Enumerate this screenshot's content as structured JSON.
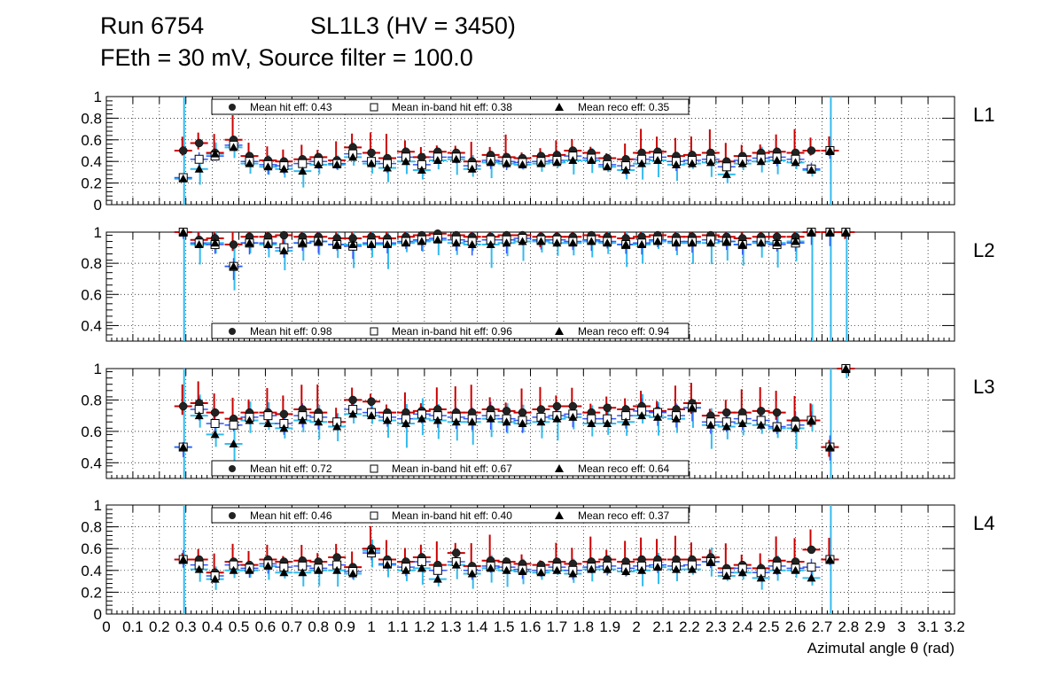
{
  "header": {
    "run": "Run 6754",
    "chamber": "SL1L3 (HV = 3450)",
    "settings": "FEth = 30 mV, Source filter = 100.0"
  },
  "colors": {
    "hit": "#cc0000",
    "inband": "#3355ff",
    "reco": "#33bbee",
    "purple": "#8800aa",
    "grid": "#000000"
  },
  "chart_data": {
    "type": "scatter",
    "xlabel": "Azimutal angle θ (rad)",
    "xlim": [
      0,
      3.2
    ],
    "x_ticks": [
      {
        "v": 0,
        "label": "0"
      },
      {
        "v": 0.1,
        "label": "0.1"
      },
      {
        "v": 0.2,
        "label": "0.2"
      },
      {
        "v": 0.3,
        "label": "0.3"
      },
      {
        "v": 0.4,
        "label": "0.4"
      },
      {
        "v": 0.5,
        "label": "0.5"
      },
      {
        "v": 0.6,
        "label": "0.6"
      },
      {
        "v": 0.7,
        "label": "0.7"
      },
      {
        "v": 0.8,
        "label": "0.8"
      },
      {
        "v": 0.9,
        "label": "0.9"
      },
      {
        "v": 1.0,
        "label": "1"
      },
      {
        "v": 1.1,
        "label": "1.1"
      },
      {
        "v": 1.2,
        "label": "1.2"
      },
      {
        "v": 1.3,
        "label": "1.3"
      },
      {
        "v": 1.4,
        "label": "1.4"
      },
      {
        "v": 1.5,
        "label": "1.5"
      },
      {
        "v": 1.6,
        "label": "1.6"
      },
      {
        "v": 1.7,
        "label": "1.7"
      },
      {
        "v": 1.8,
        "label": "1.8"
      },
      {
        "v": 1.9,
        "label": "1.9"
      },
      {
        "v": 2.0,
        "label": "2"
      },
      {
        "v": 2.1,
        "label": "2.1"
      },
      {
        "v": 2.2,
        "label": "2.2"
      },
      {
        "v": 2.3,
        "label": "2.3"
      },
      {
        "v": 2.4,
        "label": "2.4"
      },
      {
        "v": 2.5,
        "label": "2.5"
      },
      {
        "v": 2.6,
        "label": "2.6"
      },
      {
        "v": 2.7,
        "label": "2.7"
      },
      {
        "v": 2.8,
        "label": "2.8"
      },
      {
        "v": 2.9,
        "label": "2.9"
      },
      {
        "v": 3.0,
        "label": "3"
      },
      {
        "v": 3.1,
        "label": "3.1"
      },
      {
        "v": 3.2,
        "label": "3.2"
      }
    ],
    "x": [
      0.29,
      0.35,
      0.41,
      0.48,
      0.54,
      0.61,
      0.67,
      0.74,
      0.8,
      0.87,
      0.93,
      1.0,
      1.06,
      1.13,
      1.19,
      1.25,
      1.32,
      1.38,
      1.45,
      1.51,
      1.57,
      1.64,
      1.7,
      1.76,
      1.83,
      1.89,
      1.96,
      2.02,
      2.08,
      2.15,
      2.21,
      2.28,
      2.34,
      2.4,
      2.47,
      2.53,
      2.6,
      2.66,
      2.73,
      2.79
    ],
    "legend_labels": {
      "hit": "Mean hit  eff: ",
      "inband": "Mean in-band hit eff: ",
      "reco": "Mean reco eff: "
    },
    "panels": [
      {
        "name": "L1",
        "ylim": [
          0,
          1
        ],
        "y_ticks": [
          {
            "v": 0,
            "label": "0"
          },
          {
            "v": 0.2,
            "label": "0.2"
          },
          {
            "v": 0.4,
            "label": "0.4"
          },
          {
            "v": 0.6,
            "label": "0.6"
          },
          {
            "v": 0.8,
            "label": "0.8"
          },
          {
            "v": 1,
            "label": "1"
          }
        ],
        "legend_pos": "top",
        "means": {
          "hit": "0.43",
          "inband": "0.38",
          "reco": "0.35"
        },
        "hit": [
          0.5,
          0.57,
          0.48,
          0.6,
          0.45,
          0.41,
          0.4,
          0.42,
          0.44,
          0.41,
          0.53,
          0.48,
          0.43,
          0.49,
          0.44,
          0.49,
          0.48,
          0.4,
          0.46,
          0.44,
          0.43,
          0.45,
          0.46,
          0.5,
          0.48,
          0.43,
          0.42,
          0.48,
          0.49,
          0.45,
          0.46,
          0.48,
          0.4,
          0.45,
          0.48,
          0.49,
          0.48,
          0.5,
          0.5,
          null
        ],
        "inband": [
          0.25,
          0.42,
          0.45,
          0.55,
          0.4,
          0.37,
          0.36,
          0.38,
          0.4,
          0.38,
          0.47,
          0.4,
          0.38,
          0.44,
          0.37,
          0.44,
          0.44,
          0.36,
          0.41,
          0.4,
          0.39,
          0.4,
          0.41,
          0.45,
          0.43,
          0.37,
          0.36,
          0.42,
          0.44,
          0.4,
          0.41,
          0.42,
          0.35,
          0.41,
          0.43,
          0.44,
          0.42,
          0.33,
          0.5,
          null
        ],
        "reco": [
          0.24,
          0.33,
          0.47,
          0.53,
          0.38,
          0.35,
          0.33,
          0.31,
          0.37,
          0.37,
          0.44,
          0.38,
          0.34,
          0.4,
          0.32,
          0.41,
          0.42,
          0.33,
          0.39,
          0.38,
          0.37,
          0.38,
          0.39,
          0.41,
          0.41,
          0.35,
          0.32,
          0.38,
          0.41,
          0.37,
          0.38,
          0.39,
          0.28,
          0.38,
          0.4,
          0.41,
          0.39,
          0.32,
          0.5,
          null
        ]
      },
      {
        "name": "L2",
        "ylim": [
          0.3,
          1.0
        ],
        "y_ticks": [
          {
            "v": 0.4,
            "label": "0.4"
          },
          {
            "v": 0.6,
            "label": "0.6"
          },
          {
            "v": 0.8,
            "label": "0.8"
          },
          {
            "v": 1,
            "label": "1"
          }
        ],
        "legend_pos": "bottom",
        "means": {
          "hit": "0.98",
          "inband": "0.96",
          "reco": "0.94"
        },
        "hit": [
          1.0,
          0.95,
          0.96,
          0.92,
          0.97,
          0.97,
          0.98,
          0.97,
          0.97,
          0.96,
          0.96,
          0.97,
          0.96,
          0.97,
          0.98,
          0.99,
          0.98,
          0.97,
          0.97,
          0.98,
          0.98,
          0.97,
          0.97,
          0.97,
          0.98,
          0.97,
          0.96,
          0.97,
          0.98,
          0.97,
          0.97,
          0.98,
          0.97,
          0.96,
          0.97,
          0.97,
          0.97,
          1.0,
          1.0,
          1.0
        ],
        "inband": [
          1.0,
          0.93,
          0.92,
          0.78,
          0.93,
          0.93,
          0.9,
          0.93,
          0.94,
          0.92,
          0.91,
          0.93,
          0.93,
          0.94,
          0.95,
          0.96,
          0.95,
          0.94,
          0.95,
          0.95,
          0.96,
          0.95,
          0.95,
          0.94,
          0.95,
          0.94,
          0.92,
          0.93,
          0.95,
          0.94,
          0.94,
          0.95,
          0.94,
          0.92,
          0.94,
          0.92,
          0.93,
          1.0,
          1.0,
          1.0
        ],
        "reco": [
          1.0,
          0.92,
          0.93,
          0.78,
          0.93,
          0.92,
          0.88,
          0.93,
          0.94,
          0.92,
          0.92,
          0.92,
          0.92,
          0.93,
          0.94,
          0.95,
          0.93,
          0.92,
          0.92,
          0.93,
          0.94,
          0.94,
          0.93,
          0.93,
          0.94,
          0.93,
          0.92,
          0.92,
          0.94,
          0.93,
          0.93,
          0.93,
          0.94,
          0.92,
          0.93,
          0.93,
          0.94,
          1.0,
          1.0,
          1.0
        ]
      },
      {
        "name": "L3",
        "ylim": [
          0.3,
          1.0
        ],
        "y_ticks": [
          {
            "v": 0.4,
            "label": "0.4"
          },
          {
            "v": 0.6,
            "label": "0.6"
          },
          {
            "v": 0.8,
            "label": "0.8"
          },
          {
            "v": 1,
            "label": "1"
          }
        ],
        "legend_pos": "bottom",
        "means": {
          "hit": "0.72",
          "inband": "0.67",
          "reco": "0.64"
        },
        "hit": [
          0.76,
          0.78,
          0.72,
          0.68,
          0.72,
          0.72,
          0.71,
          0.74,
          0.72,
          0.66,
          0.8,
          0.79,
          0.72,
          0.72,
          0.73,
          0.74,
          0.72,
          0.72,
          0.74,
          0.73,
          0.72,
          0.74,
          0.76,
          0.76,
          0.72,
          0.75,
          0.74,
          0.76,
          0.73,
          0.74,
          0.78,
          0.7,
          0.72,
          0.72,
          0.73,
          0.72,
          0.67,
          0.67,
          0.5,
          1.0
        ],
        "inband": [
          0.5,
          0.74,
          0.65,
          0.64,
          0.69,
          0.7,
          0.65,
          0.7,
          0.69,
          0.66,
          0.74,
          0.72,
          0.69,
          0.68,
          0.71,
          0.7,
          0.69,
          0.68,
          0.7,
          0.68,
          0.67,
          0.69,
          0.7,
          0.71,
          0.68,
          0.68,
          0.7,
          0.73,
          0.72,
          0.7,
          0.75,
          0.66,
          0.66,
          0.68,
          0.67,
          0.63,
          0.64,
          0.67,
          0.5,
          1.0
        ],
        "reco": [
          0.5,
          0.7,
          0.58,
          0.52,
          0.67,
          0.65,
          0.62,
          0.67,
          0.66,
          0.63,
          0.71,
          0.7,
          0.67,
          0.65,
          0.68,
          0.67,
          0.66,
          0.66,
          0.68,
          0.66,
          0.65,
          0.66,
          0.68,
          0.69,
          0.65,
          0.65,
          0.66,
          0.7,
          0.69,
          0.68,
          0.75,
          0.64,
          0.63,
          0.65,
          0.64,
          0.62,
          0.62,
          0.67,
          0.5,
          1.0
        ]
      },
      {
        "name": "L4",
        "ylim": [
          0,
          1
        ],
        "y_ticks": [
          {
            "v": 0,
            "label": "0"
          },
          {
            "v": 0.2,
            "label": "0.2"
          },
          {
            "v": 0.4,
            "label": "0.4"
          },
          {
            "v": 0.6,
            "label": "0.6"
          },
          {
            "v": 0.8,
            "label": "0.8"
          },
          {
            "v": 1,
            "label": "1"
          }
        ],
        "legend_pos": "top",
        "means": {
          "hit": "0.46",
          "inband": "0.40",
          "reco": "0.37"
        },
        "hit": [
          0.5,
          0.5,
          0.38,
          0.48,
          0.45,
          0.5,
          0.48,
          0.49,
          0.48,
          0.52,
          0.43,
          0.6,
          0.5,
          0.48,
          0.52,
          0.45,
          0.56,
          0.44,
          0.49,
          0.48,
          0.46,
          0.45,
          0.48,
          0.46,
          0.48,
          0.5,
          0.48,
          0.5,
          0.5,
          0.5,
          0.5,
          0.52,
          0.42,
          0.45,
          0.42,
          0.49,
          0.48,
          0.59,
          0.5,
          null
        ],
        "inband": [
          0.5,
          0.45,
          0.35,
          0.45,
          0.42,
          0.46,
          0.43,
          0.44,
          0.42,
          0.45,
          0.39,
          0.56,
          0.46,
          0.43,
          0.48,
          0.4,
          0.48,
          0.4,
          0.44,
          0.43,
          0.41,
          0.4,
          0.43,
          0.4,
          0.43,
          0.44,
          0.42,
          0.44,
          0.45,
          0.44,
          0.45,
          0.48,
          0.38,
          0.42,
          0.38,
          0.44,
          0.42,
          0.43,
          0.5,
          null
        ],
        "reco": [
          0.5,
          0.41,
          0.32,
          0.4,
          0.4,
          0.44,
          0.38,
          0.38,
          0.4,
          0.4,
          0.37,
          0.58,
          0.45,
          0.4,
          0.42,
          0.32,
          0.45,
          0.37,
          0.42,
          0.4,
          0.39,
          0.38,
          0.4,
          0.37,
          0.41,
          0.41,
          0.39,
          0.4,
          0.43,
          0.41,
          0.41,
          0.48,
          0.35,
          0.38,
          0.33,
          0.4,
          0.4,
          0.33,
          0.5,
          null
        ]
      }
    ]
  }
}
